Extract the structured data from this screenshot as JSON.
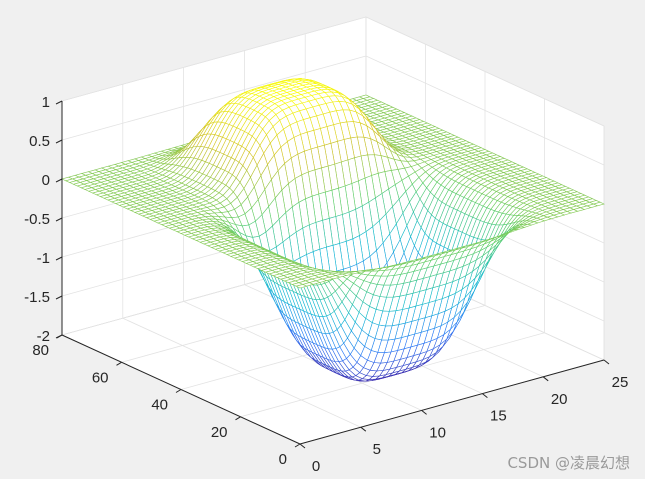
{
  "chart_data": {
    "type": "surface-mesh",
    "title": "",
    "xlabel": "",
    "ylabel": "",
    "zlabel": "",
    "xlim": [
      0,
      25
    ],
    "ylim": [
      0,
      80
    ],
    "zlim": [
      -2,
      1
    ],
    "x_ticks": [
      "0",
      "5",
      "10",
      "15",
      "20",
      "25"
    ],
    "y_ticks": [
      "0",
      "20",
      "40",
      "60",
      "80"
    ],
    "z_ticks": [
      "-2",
      "-1.5",
      "-1",
      "-0.5",
      "0",
      "0.5",
      "1"
    ],
    "grid": true,
    "view": "3d-default",
    "surface": {
      "x_range": [
        0,
        25
      ],
      "y_range": [
        0,
        80
      ],
      "peak": {
        "x": 13,
        "y": 55,
        "z": 1.0
      },
      "trough": {
        "x": 12,
        "y": 25,
        "z": -2.0
      },
      "flat_value": 0
    },
    "colormap": [
      "#3e26a8",
      "#2f7af8",
      "#14bad2",
      "#5fce6a",
      "#d1c12a",
      "#f9fb0e"
    ]
  },
  "watermark": "CSDN @凌晨幻想"
}
